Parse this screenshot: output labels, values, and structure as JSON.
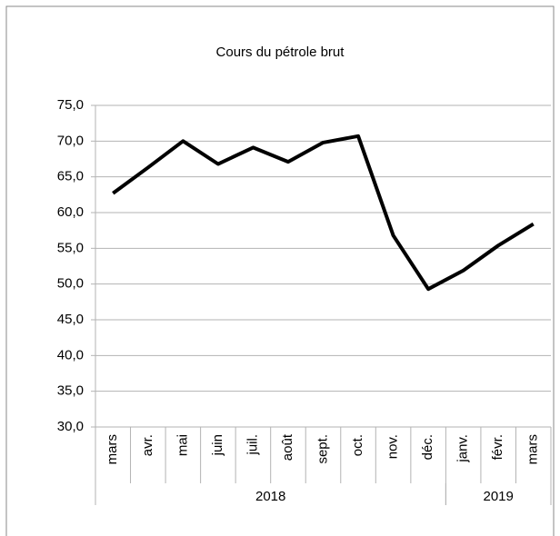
{
  "chart_data": {
    "type": "line",
    "title": "Cours du pétrole brut",
    "category_groups": [
      {
        "label": "2018",
        "categories": [
          "mars",
          "avr.",
          "mai",
          "juin",
          "juil.",
          "août",
          "sept.",
          "oct.",
          "nov.",
          "déc."
        ]
      },
      {
        "label": "2019",
        "categories": [
          "janv.",
          "févr.",
          "mars"
        ]
      }
    ],
    "series": [
      {
        "color": "#000000",
        "values": [
          62.7,
          66.3,
          70.0,
          66.8,
          69.1,
          67.1,
          69.8,
          70.7,
          56.8,
          49.3,
          51.9,
          55.4,
          58.4
        ]
      }
    ],
    "ylim": [
      30,
      75
    ],
    "yticks": [
      {
        "value": 30,
        "label": "30,0"
      },
      {
        "value": 35,
        "label": "35,0"
      },
      {
        "value": 40,
        "label": "40,0"
      },
      {
        "value": 45,
        "label": "45,0"
      },
      {
        "value": 50,
        "label": "50,0"
      },
      {
        "value": 55,
        "label": "55,0"
      },
      {
        "value": 60,
        "label": "60,0"
      },
      {
        "value": 65,
        "label": "65,0"
      },
      {
        "value": 70,
        "label": "70,0"
      },
      {
        "value": 75,
        "label": "75,0"
      }
    ],
    "grid": true
  }
}
